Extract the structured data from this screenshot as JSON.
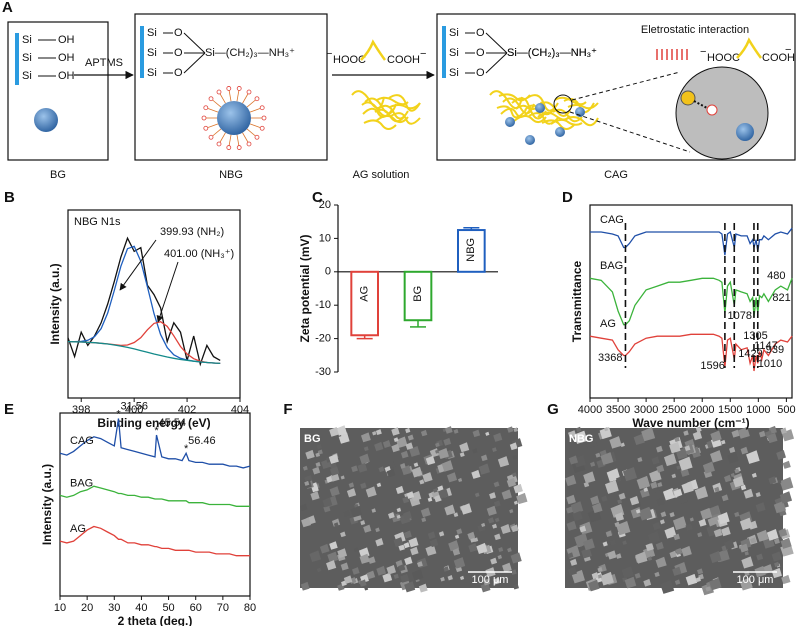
{
  "scheme": {
    "panel": "A",
    "labels": [
      "BG",
      "NBG",
      "AG solution",
      "CAG"
    ],
    "si": "Si",
    "oh": "OH",
    "o": "O",
    "chain": "Si—(CH₂)₃—NH₃⁺",
    "aptms": "APTMS",
    "hooc": "HOOC",
    "cooh": "COOH",
    "minus": "−",
    "interaction": "Eletrostatic interaction"
  },
  "images": [
    {
      "panel": "F",
      "label": "BG",
      "scale": "100 μm"
    },
    {
      "panel": "G",
      "label": "NBG",
      "scale": "100 μm"
    }
  ],
  "chart_data": [
    {
      "type": "line",
      "panel": "B",
      "xlabel": "Binding energy (eV)",
      "ylabel": "Intensity (a.u.)",
      "xlim": [
        397.5,
        404
      ],
      "xticks": [
        398,
        400,
        402,
        404
      ],
      "ylim": [
        0,
        100
      ],
      "annotations": [
        "NBG N1s",
        "399.93 (NH₂)",
        "401.00 (NH₃⁺)"
      ],
      "x": [
        397.5,
        397.75,
        398,
        398.25,
        398.5,
        398.75,
        399,
        399.25,
        399.5,
        399.75,
        400,
        400.25,
        400.5,
        400.75,
        401,
        401.25,
        401.5,
        401.75,
        402,
        402.25,
        402.5,
        402.75,
        403,
        403.25
      ],
      "series": [
        {
          "color": "#111111",
          "values": [
            32,
            22,
            35,
            28,
            33,
            40,
            50,
            62,
            75,
            85,
            78,
            80,
            60,
            55,
            48,
            30,
            40,
            35,
            20,
            33,
            18,
            28,
            22,
            20
          ]
        },
        {
          "color": "#1f5fbf",
          "values": [
            30,
            30,
            30.1,
            30.7,
            32.6,
            36.9,
            45.2,
            57.2,
            70.1,
            79.4,
            80.7,
            72.7,
            59.2,
            44.9,
            33.7,
            26.8,
            23,
            21.1,
            20.2,
            19.6,
            19.2,
            18.9,
            18.6,
            18.4
          ]
        },
        {
          "color": "#e0413a",
          "values": [
            30,
            29.9,
            29.8,
            29.6,
            29.4,
            29.1,
            28.8,
            28.4,
            28,
            28.2,
            29.5,
            32.1,
            36.3,
            39.7,
            40.6,
            38.1,
            33.1,
            27.4,
            23.4,
            20.9,
            19.6,
            18.9,
            18.6,
            18.4
          ]
        },
        {
          "color": "#138a8a",
          "values": [
            30,
            29.9,
            29.8,
            29.6,
            29.4,
            29.1,
            28.7,
            28.2,
            27.6,
            26.9,
            26.1,
            25.2,
            24.3,
            23.4,
            22.6,
            21.8,
            21.1,
            20.5,
            20,
            19.6,
            19.2,
            18.9,
            18.6,
            18.4
          ]
        }
      ]
    },
    {
      "type": "bar",
      "panel": "C",
      "ylabel": "Zeta potential (mV)",
      "categories": [
        "AG",
        "BG",
        "NBG"
      ],
      "values": [
        -19,
        -14.5,
        12.5
      ],
      "errors": [
        1,
        2,
        0.7
      ],
      "colors": [
        "#e0413a",
        "#2ea82e",
        "#1f5fbf"
      ],
      "ylim": [
        -30,
        20
      ],
      "yticks": [
        -30,
        -20,
        -10,
        0,
        10,
        20
      ]
    },
    {
      "type": "line",
      "panel": "D",
      "xlabel": "Wave number (cm⁻¹)",
      "ylabel": "Transmittance",
      "xlim": [
        4000,
        400
      ],
      "xticks": [
        4000,
        3500,
        3000,
        2500,
        2000,
        1500,
        1000,
        500
      ],
      "ylim": [
        0,
        100
      ],
      "dashed": [
        3368,
        1596,
        1429,
        1078,
        1010
      ],
      "annotations": [
        {
          "text": "3368",
          "x": 3368
        },
        {
          "text": "1596",
          "x": 1596
        },
        {
          "text": "1429",
          "x": 1429
        },
        {
          "text": "1305",
          "x": 1305
        },
        {
          "text": "1147",
          "x": 1147
        },
        {
          "text": "1078",
          "x": 1078
        },
        {
          "text": "1010",
          "x": 1010
        },
        {
          "text": "939",
          "x": 939
        },
        {
          "text": "821",
          "x": 821
        },
        {
          "text": "480",
          "x": 480
        }
      ],
      "x": [
        4000,
        3800,
        3600,
        3500,
        3400,
        3368,
        3300,
        3200,
        3000,
        2800,
        2600,
        2400,
        2200,
        2000,
        1800,
        1700,
        1650,
        1596,
        1550,
        1500,
        1429,
        1400,
        1305,
        1200,
        1147,
        1100,
        1078,
        1040,
        1010,
        980,
        939,
        900,
        821,
        700,
        600,
        480,
        400
      ],
      "series": [
        {
          "name": "CAG",
          "color": "#1f4fa8",
          "values": [
            86,
            86,
            85,
            84,
            78,
            78,
            80,
            84,
            86,
            86,
            86,
            86,
            86,
            86,
            86,
            86,
            85,
            74,
            85,
            86,
            78,
            85,
            84,
            84,
            80,
            82,
            78,
            82,
            76,
            82,
            82,
            84,
            82,
            85,
            86,
            85,
            88
          ]
        },
        {
          "name": "BAG",
          "color": "#3bb33b",
          "values": [
            62,
            61,
            55,
            45,
            38,
            38,
            40,
            48,
            56,
            58,
            60,
            60,
            61,
            62,
            62,
            61,
            60,
            44,
            58,
            60,
            48,
            56,
            55,
            54,
            50,
            52,
            42,
            52,
            44,
            53,
            52,
            54,
            50,
            56,
            58,
            56,
            62
          ]
        },
        {
          "name": "AG",
          "color": "#e0413a",
          "values": [
            32,
            31,
            30,
            25,
            22,
            22,
            24,
            28,
            31,
            32,
            32,
            32,
            33,
            33,
            33,
            32,
            31,
            16,
            30,
            31,
            20,
            28,
            25,
            26,
            18,
            22,
            14,
            22,
            18,
            24,
            20,
            25,
            22,
            28,
            30,
            29,
            32
          ]
        }
      ]
    },
    {
      "type": "line",
      "panel": "E",
      "xlabel": "2 theta (deg.)",
      "ylabel": "Intensity (a.u.)",
      "xlim": [
        10,
        80
      ],
      "xticks": [
        10,
        20,
        30,
        40,
        50,
        60,
        70,
        80
      ],
      "ylim": [
        0,
        100
      ],
      "marker": "*",
      "annotations": [
        {
          "text": "31.56",
          "x": 31.56
        },
        {
          "text": "45.54",
          "x": 45.54
        },
        {
          "text": "56.46",
          "x": 56.46
        }
      ],
      "x": [
        10,
        12.5,
        15,
        17.5,
        20,
        22.5,
        25,
        27.5,
        30,
        31.56,
        32.5,
        35,
        37.5,
        40,
        42.5,
        45,
        45.54,
        47.5,
        50,
        52.5,
        55,
        56.46,
        57.5,
        60,
        62.5,
        65,
        67.5,
        70,
        72.5,
        75,
        77.5,
        80
      ],
      "series": [
        {
          "name": "CAG",
          "color": "#1f4fa8",
          "values": [
            78,
            77,
            79,
            82,
            85,
            87,
            86,
            84,
            82,
            97,
            81,
            80,
            79,
            78,
            77,
            76,
            88,
            76,
            75,
            75,
            74,
            78,
            74,
            73,
            73,
            72,
            72,
            72,
            71,
            71,
            70,
            71
          ]
        },
        {
          "name": "BAG",
          "color": "#3bb33b",
          "values": [
            55,
            54,
            55,
            57,
            58,
            60,
            59,
            58,
            57,
            56,
            56,
            55,
            55,
            54,
            54,
            53,
            53,
            53,
            52,
            52,
            52,
            52,
            51,
            51,
            51,
            50,
            50,
            50,
            50,
            49,
            49,
            49
          ]
        },
        {
          "name": "AG",
          "color": "#e0413a",
          "values": [
            30,
            29,
            30,
            33,
            36,
            38,
            37,
            35,
            33,
            31,
            31,
            29,
            29,
            28,
            28,
            27,
            27,
            26,
            26,
            25,
            25,
            25,
            25,
            24,
            24,
            24,
            23,
            23,
            23,
            22,
            22,
            22
          ]
        }
      ]
    }
  ]
}
